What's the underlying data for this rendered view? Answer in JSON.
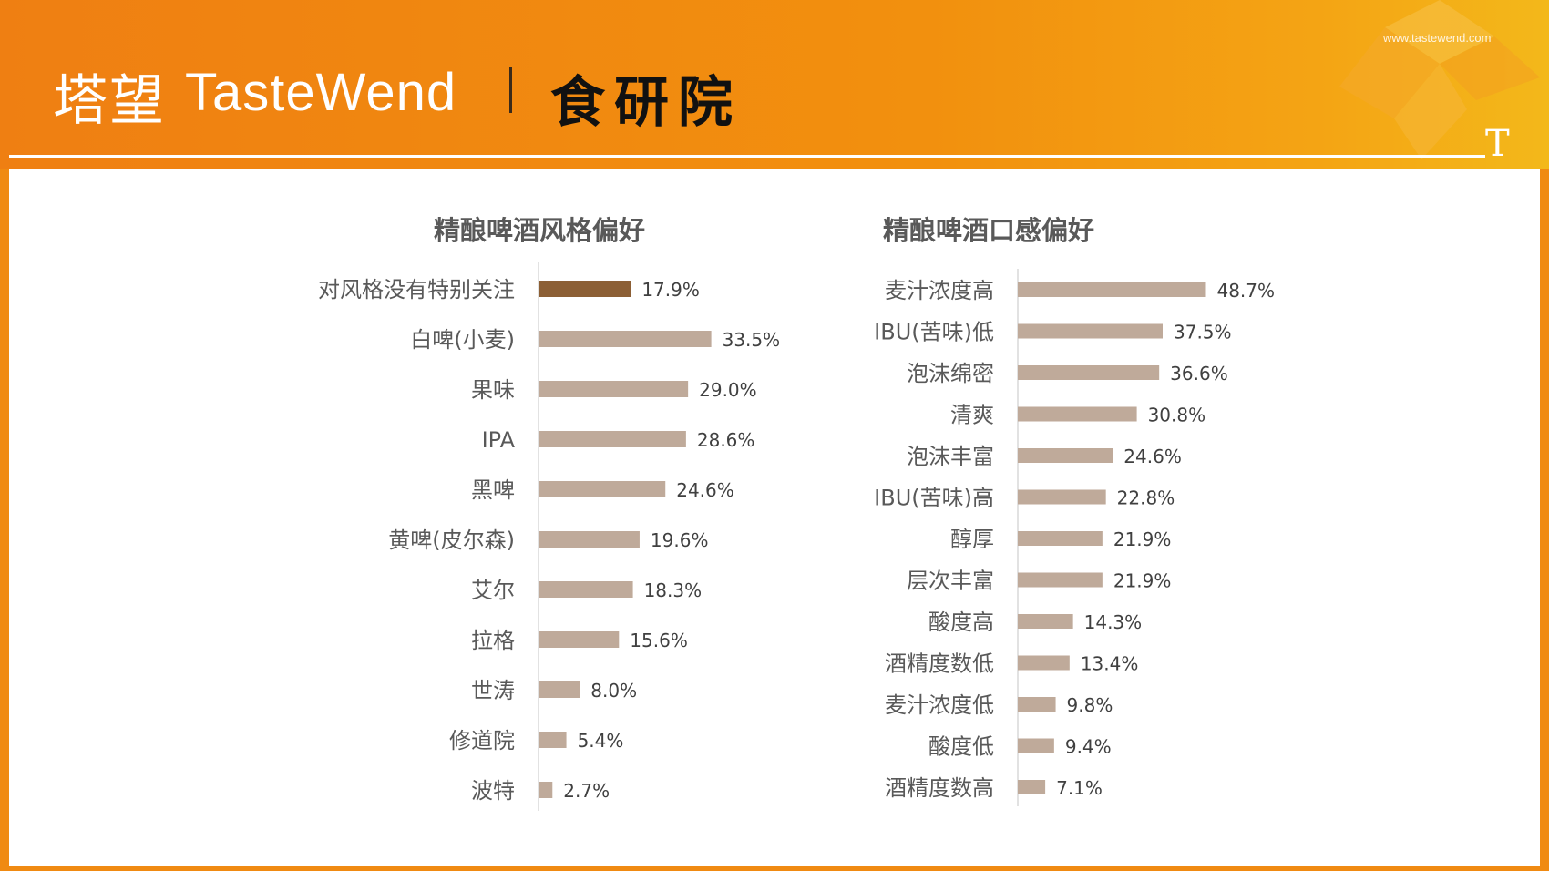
{
  "header": {
    "brand_cn": "塔望",
    "brand_en": "TasteWend",
    "brand_sub": "食研院",
    "website": "www.tastewend.com",
    "corner_letter": "T",
    "colors": {
      "orange": "#ef7f12",
      "gold": "#f3b81a"
    }
  },
  "chart_data": [
    {
      "type": "bar",
      "orientation": "horizontal",
      "title": "精酿啤酒风格偏好",
      "categories": [
        "对风格没有特别关注",
        "白啤(小麦)",
        "果味",
        "IPA",
        "黑啤",
        "黄啤(皮尔森)",
        "艾尔",
        "拉格",
        "世涛",
        "修道院",
        "波特"
      ],
      "values": [
        17.9,
        33.5,
        29.0,
        28.6,
        24.6,
        19.6,
        18.3,
        15.6,
        8.0,
        5.4,
        2.7
      ],
      "labels": [
        "17.9%",
        "33.5%",
        "29.0%",
        "28.6%",
        "24.6%",
        "19.6%",
        "18.3%",
        "15.6%",
        "8.0%",
        "5.4%",
        "2.7%"
      ],
      "unit": "%",
      "highlight_index": 0,
      "colors": {
        "bar": "#bfaa9a",
        "highlight": "#8c5f35"
      }
    },
    {
      "type": "bar",
      "orientation": "horizontal",
      "title": "精酿啤酒口感偏好",
      "categories": [
        "麦汁浓度高",
        "IBU(苦味)低",
        "泡沫绵密",
        "清爽",
        "泡沫丰富",
        "IBU(苦味)高",
        "醇厚",
        "层次丰富",
        "酸度高",
        "酒精度数低",
        "麦汁浓度低",
        "酸度低",
        "酒精度数高"
      ],
      "values": [
        48.7,
        37.5,
        36.6,
        30.8,
        24.6,
        22.8,
        21.9,
        21.9,
        14.3,
        13.4,
        9.8,
        9.4,
        7.1
      ],
      "labels": [
        "48.7%",
        "37.5%",
        "36.6%",
        "30.8%",
        "24.6%",
        "22.8%",
        "21.9%",
        "21.9%",
        "14.3%",
        "13.4%",
        "9.8%",
        "9.4%",
        "7.1%"
      ],
      "unit": "%",
      "colors": {
        "bar": "#bfaa9a"
      }
    }
  ]
}
